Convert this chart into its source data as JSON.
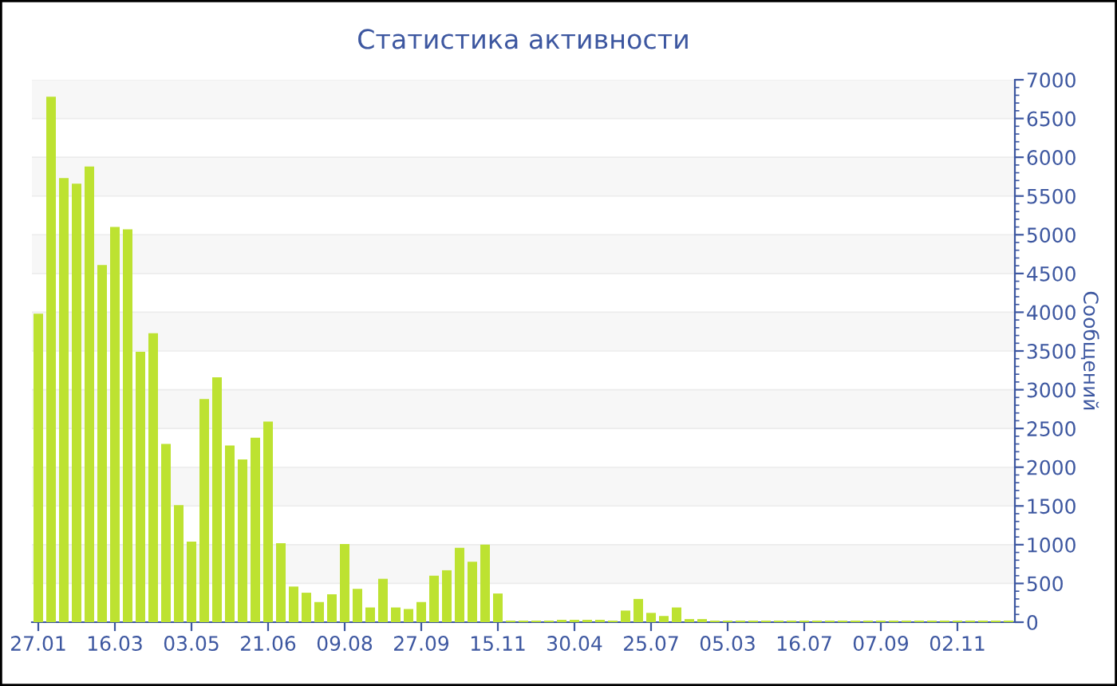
{
  "chart_data": {
    "type": "bar",
    "title": "Статистика активности",
    "ylabel": "Сообщений",
    "categories": [
      "27.01",
      null,
      null,
      null,
      null,
      null,
      "16.03",
      null,
      null,
      null,
      null,
      null,
      "03.05",
      null,
      null,
      null,
      null,
      null,
      "21.06",
      null,
      null,
      null,
      null,
      null,
      "09.08",
      null,
      null,
      null,
      null,
      null,
      "27.09",
      null,
      null,
      null,
      null,
      null,
      "15.11",
      null,
      null,
      null,
      null,
      null,
      "30.04",
      null,
      null,
      null,
      null,
      null,
      "25.07",
      null,
      null,
      null,
      null,
      null,
      "05.03",
      null,
      null,
      null,
      null,
      null,
      "16.07",
      null,
      null,
      null,
      null,
      null,
      "07.09",
      null,
      null,
      null,
      null,
      null,
      "02.11",
      null,
      null,
      null,
      null
    ],
    "values": [
      3980,
      6780,
      5730,
      5660,
      5880,
      4610,
      5100,
      5070,
      3490,
      3730,
      2300,
      1510,
      1040,
      2880,
      3160,
      2280,
      2100,
      2380,
      2590,
      1020,
      460,
      380,
      260,
      360,
      1010,
      430,
      190,
      560,
      190,
      170,
      260,
      600,
      670,
      960,
      780,
      1000,
      370,
      20,
      20,
      20,
      20,
      30,
      30,
      30,
      30,
      20,
      150,
      300,
      120,
      80,
      190,
      40,
      40,
      20,
      20,
      20,
      20,
      20,
      20,
      20,
      20,
      20,
      20,
      20,
      20,
      20,
      20,
      20,
      20,
      20,
      20,
      20,
      20,
      20,
      20,
      20,
      20
    ],
    "color": "#bde231",
    "ylim": [
      0,
      7000
    ],
    "yticks": [
      0,
      500,
      1000,
      1500,
      2000,
      2500,
      3000,
      3500,
      4000,
      4500,
      5000,
      5500,
      6000,
      6500,
      7000
    ],
    "grid": "y"
  }
}
